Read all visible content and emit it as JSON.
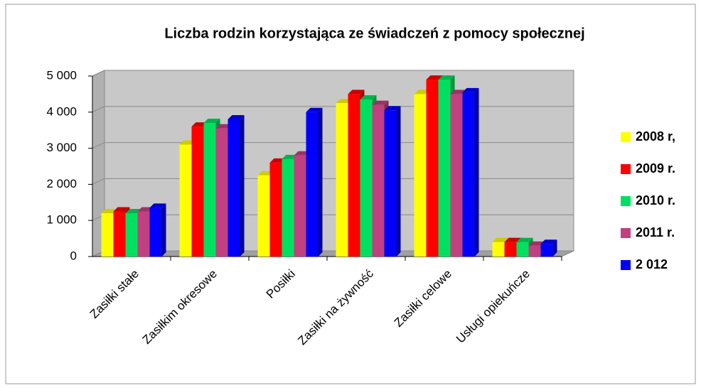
{
  "chart_data": {
    "type": "bar3d",
    "title": "Liczba rodzin korzystająca ze świadczeń z pomocy społecznej",
    "categories": [
      "Zasiłki stałe",
      "Zasiłkim okresowe",
      "Posiłki",
      "Zasiłki na żywność",
      "Zasiłki celowe",
      "Usługi opiekuńcze"
    ],
    "series": [
      {
        "name": "2008 r,",
        "color": "#ffff00",
        "values": [
          1200,
          3100,
          2250,
          4250,
          4500,
          400
        ]
      },
      {
        "name": "2009 r.",
        "color": "#ff0000",
        "values": [
          1250,
          3600,
          2600,
          4500,
          4900,
          400
        ]
      },
      {
        "name": "2010 r.",
        "color": "#00e060",
        "values": [
          1200,
          3700,
          2700,
          4350,
          4900,
          400
        ]
      },
      {
        "name": "2011 r.",
        "color": "#c04080",
        "values": [
          1250,
          3550,
          2800,
          4200,
          4500,
          300
        ]
      },
      {
        "name": "2 012",
        "color": "#0000ff",
        "values": [
          1350,
          3800,
          4000,
          4050,
          4550,
          350
        ]
      }
    ],
    "ylim": [
      0,
      5000
    ],
    "yticks": [
      0,
      {
        "value": 1000,
        "label": "1 000"
      },
      {
        "value": 2000,
        "label": "2 000"
      },
      {
        "value": 3000,
        "label": "3 000"
      },
      {
        "value": 4000,
        "label": "4 000"
      },
      {
        "value": 5000,
        "label": "5 000"
      }
    ],
    "grid": true,
    "legend": "right"
  }
}
